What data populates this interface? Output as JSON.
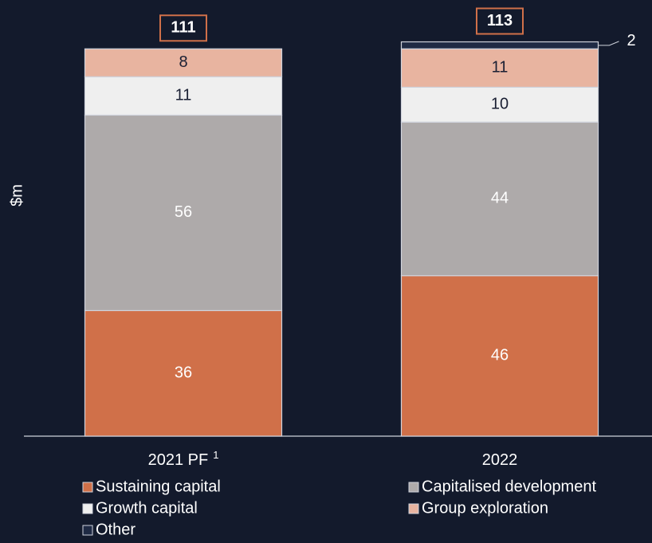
{
  "chart_data": {
    "type": "stacked_bar",
    "y_label": "$m",
    "categories": [
      "2021 PF",
      "2022"
    ],
    "category_footnotes": [
      "1",
      null
    ],
    "totals": [
      111,
      113
    ],
    "ylim": [
      0,
      125
    ],
    "series": [
      {
        "name": "Sustaining capital",
        "color": "#d07049",
        "label_color": "#ffffff",
        "values": [
          36,
          46
        ]
      },
      {
        "name": "Capitalised development",
        "color": "#aeaaaa",
        "label_color": "#ffffff",
        "values": [
          56,
          44
        ]
      },
      {
        "name": "Growth capital",
        "color": "#efefef",
        "label_color": "#1a1f33",
        "values": [
          11,
          10
        ]
      },
      {
        "name": "Group exploration",
        "color": "#e8b4a0",
        "label_color": "#1a1f33",
        "values": [
          8,
          11
        ]
      },
      {
        "name": "Other",
        "color": "#1f2a44",
        "label_color": "#ffffff",
        "values": [
          null,
          2
        ]
      }
    ]
  }
}
